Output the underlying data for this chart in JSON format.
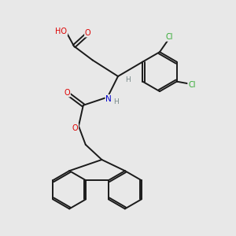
{
  "bg_color": "#e8e8e8",
  "bond_color": "#1a1a1a",
  "atom_colors": {
    "O": "#dd0000",
    "N": "#0000cc",
    "Cl": "#33aa33",
    "C": "#1a1a1a",
    "H": "#778888"
  }
}
